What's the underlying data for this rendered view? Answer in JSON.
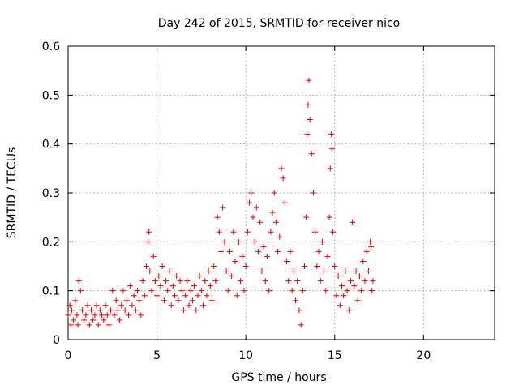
{
  "chart_data": {
    "type": "scatter",
    "title": "Day 242 of 2015, SRMTID for receiver nico",
    "xlabel": "GPS time / hours",
    "ylabel": "SRMTID / TECUs",
    "xlim": [
      0,
      24
    ],
    "ylim": [
      0,
      0.6
    ],
    "xticks": [
      0,
      5,
      10,
      15,
      20
    ],
    "xtick_labels": [
      "0",
      "5",
      "10",
      "15",
      "20"
    ],
    "yticks": [
      0,
      0.1,
      0.2,
      0.3,
      0.4,
      0.5,
      0.6
    ],
    "ytick_labels": [
      "0",
      "0.1",
      "0.2",
      "0.3",
      "0.4",
      "0.5",
      "0.6"
    ],
    "grid": true,
    "marker": "+",
    "color": "#e00000",
    "series": [
      {
        "name": "nico",
        "points": [
          [
            0.0,
            0.05
          ],
          [
            0.1,
            0.07
          ],
          [
            0.15,
            0.03
          ],
          [
            0.2,
            0.06
          ],
          [
            0.3,
            0.04
          ],
          [
            0.4,
            0.08
          ],
          [
            0.5,
            0.05
          ],
          [
            0.55,
            0.03
          ],
          [
            0.6,
            0.12
          ],
          [
            0.7,
            0.1
          ],
          [
            0.8,
            0.06
          ],
          [
            0.9,
            0.04
          ],
          [
            1.0,
            0.05
          ],
          [
            1.1,
            0.07
          ],
          [
            1.2,
            0.03
          ],
          [
            1.3,
            0.06
          ],
          [
            1.4,
            0.04
          ],
          [
            1.5,
            0.05
          ],
          [
            1.6,
            0.07
          ],
          [
            1.7,
            0.03
          ],
          [
            1.8,
            0.06
          ],
          [
            1.9,
            0.05
          ],
          [
            2.0,
            0.04
          ],
          [
            2.1,
            0.07
          ],
          [
            2.2,
            0.05
          ],
          [
            2.3,
            0.03
          ],
          [
            2.4,
            0.06
          ],
          [
            2.5,
            0.1
          ],
          [
            2.6,
            0.05
          ],
          [
            2.7,
            0.08
          ],
          [
            2.8,
            0.06
          ],
          [
            2.9,
            0.04
          ],
          [
            3.0,
            0.07
          ],
          [
            3.1,
            0.1
          ],
          [
            3.2,
            0.06
          ],
          [
            3.3,
            0.08
          ],
          [
            3.4,
            0.05
          ],
          [
            3.5,
            0.11
          ],
          [
            3.6,
            0.07
          ],
          [
            3.7,
            0.09
          ],
          [
            3.8,
            0.06
          ],
          [
            3.9,
            0.1
          ],
          [
            4.0,
            0.08
          ],
          [
            4.1,
            0.05
          ],
          [
            4.2,
            0.12
          ],
          [
            4.3,
            0.09
          ],
          [
            4.4,
            0.15
          ],
          [
            4.5,
            0.2
          ],
          [
            4.55,
            0.22
          ],
          [
            4.6,
            0.14
          ],
          [
            4.7,
            0.1
          ],
          [
            4.8,
            0.17
          ],
          [
            4.9,
            0.12
          ],
          [
            5.0,
            0.09
          ],
          [
            5.1,
            0.13
          ],
          [
            5.2,
            0.11
          ],
          [
            5.3,
            0.15
          ],
          [
            5.4,
            0.08
          ],
          [
            5.5,
            0.12
          ],
          [
            5.6,
            0.1
          ],
          [
            5.7,
            0.14
          ],
          [
            5.8,
            0.07
          ],
          [
            5.9,
            0.11
          ],
          [
            6.0,
            0.09
          ],
          [
            6.1,
            0.13
          ],
          [
            6.2,
            0.08
          ],
          [
            6.3,
            0.12
          ],
          [
            6.4,
            0.1
          ],
          [
            6.5,
            0.06
          ],
          [
            6.6,
            0.09
          ],
          [
            6.7,
            0.12
          ],
          [
            6.8,
            0.07
          ],
          [
            6.9,
            0.1
          ],
          [
            7.0,
            0.08
          ],
          [
            7.1,
            0.11
          ],
          [
            7.2,
            0.06
          ],
          [
            7.3,
            0.09
          ],
          [
            7.4,
            0.13
          ],
          [
            7.5,
            0.1
          ],
          [
            7.6,
            0.07
          ],
          [
            7.7,
            0.12
          ],
          [
            7.8,
            0.09
          ],
          [
            7.9,
            0.14
          ],
          [
            8.0,
            0.11
          ],
          [
            8.1,
            0.08
          ],
          [
            8.2,
            0.15
          ],
          [
            8.3,
            0.12
          ],
          [
            8.4,
            0.25
          ],
          [
            8.5,
            0.22
          ],
          [
            8.6,
            0.18
          ],
          [
            8.7,
            0.27
          ],
          [
            8.8,
            0.2
          ],
          [
            8.9,
            0.14
          ],
          [
            9.0,
            0.1
          ],
          [
            9.1,
            0.18
          ],
          [
            9.2,
            0.13
          ],
          [
            9.3,
            0.22
          ],
          [
            9.4,
            0.16
          ],
          [
            9.5,
            0.09
          ],
          [
            9.6,
            0.2
          ],
          [
            9.7,
            0.12
          ],
          [
            9.8,
            0.17
          ],
          [
            9.9,
            0.1
          ],
          [
            10.0,
            0.15
          ],
          [
            10.1,
            0.22
          ],
          [
            10.2,
            0.28
          ],
          [
            10.3,
            0.3
          ],
          [
            10.4,
            0.25
          ],
          [
            10.5,
            0.2
          ],
          [
            10.6,
            0.27
          ],
          [
            10.7,
            0.18
          ],
          [
            10.8,
            0.24
          ],
          [
            10.9,
            0.14
          ],
          [
            11.0,
            0.19
          ],
          [
            11.1,
            0.12
          ],
          [
            11.2,
            0.17
          ],
          [
            11.3,
            0.1
          ],
          [
            11.4,
            0.22
          ],
          [
            11.5,
            0.26
          ],
          [
            11.6,
            0.3
          ],
          [
            11.7,
            0.24
          ],
          [
            11.8,
            0.18
          ],
          [
            11.9,
            0.21
          ],
          [
            12.0,
            0.35
          ],
          [
            12.1,
            0.33
          ],
          [
            12.2,
            0.28
          ],
          [
            12.3,
            0.16
          ],
          [
            12.4,
            0.12
          ],
          [
            12.5,
            0.18
          ],
          [
            12.6,
            0.1
          ],
          [
            12.7,
            0.14
          ],
          [
            12.8,
            0.08
          ],
          [
            12.9,
            0.12
          ],
          [
            13.0,
            0.06
          ],
          [
            13.1,
            0.03
          ],
          [
            13.2,
            0.1
          ],
          [
            13.3,
            0.15
          ],
          [
            13.4,
            0.25
          ],
          [
            13.45,
            0.42
          ],
          [
            13.5,
            0.48
          ],
          [
            13.55,
            0.53
          ],
          [
            13.6,
            0.45
          ],
          [
            13.7,
            0.38
          ],
          [
            13.8,
            0.3
          ],
          [
            13.9,
            0.22
          ],
          [
            14.0,
            0.15
          ],
          [
            14.1,
            0.18
          ],
          [
            14.2,
            0.12
          ],
          [
            14.3,
            0.2
          ],
          [
            14.4,
            0.14
          ],
          [
            14.5,
            0.1
          ],
          [
            14.6,
            0.17
          ],
          [
            14.7,
            0.25
          ],
          [
            14.75,
            0.35
          ],
          [
            14.8,
            0.42
          ],
          [
            14.85,
            0.39
          ],
          [
            14.9,
            0.22
          ],
          [
            15.0,
            0.15
          ],
          [
            15.1,
            0.09
          ],
          [
            15.2,
            0.13
          ],
          [
            15.3,
            0.07
          ],
          [
            15.4,
            0.11
          ],
          [
            15.5,
            0.09
          ],
          [
            15.6,
            0.14
          ],
          [
            15.7,
            0.1
          ],
          [
            15.8,
            0.06
          ],
          [
            15.9,
            0.12
          ],
          [
            16.0,
            0.24
          ],
          [
            16.1,
            0.11
          ],
          [
            16.2,
            0.14
          ],
          [
            16.3,
            0.08
          ],
          [
            16.4,
            0.13
          ],
          [
            16.5,
            0.1
          ],
          [
            16.6,
            0.16
          ],
          [
            16.7,
            0.12
          ],
          [
            16.8,
            0.18
          ],
          [
            16.9,
            0.14
          ],
          [
            17.0,
            0.2
          ],
          [
            17.05,
            0.19
          ],
          [
            17.1,
            0.1
          ],
          [
            17.15,
            0.12
          ]
        ]
      }
    ]
  }
}
